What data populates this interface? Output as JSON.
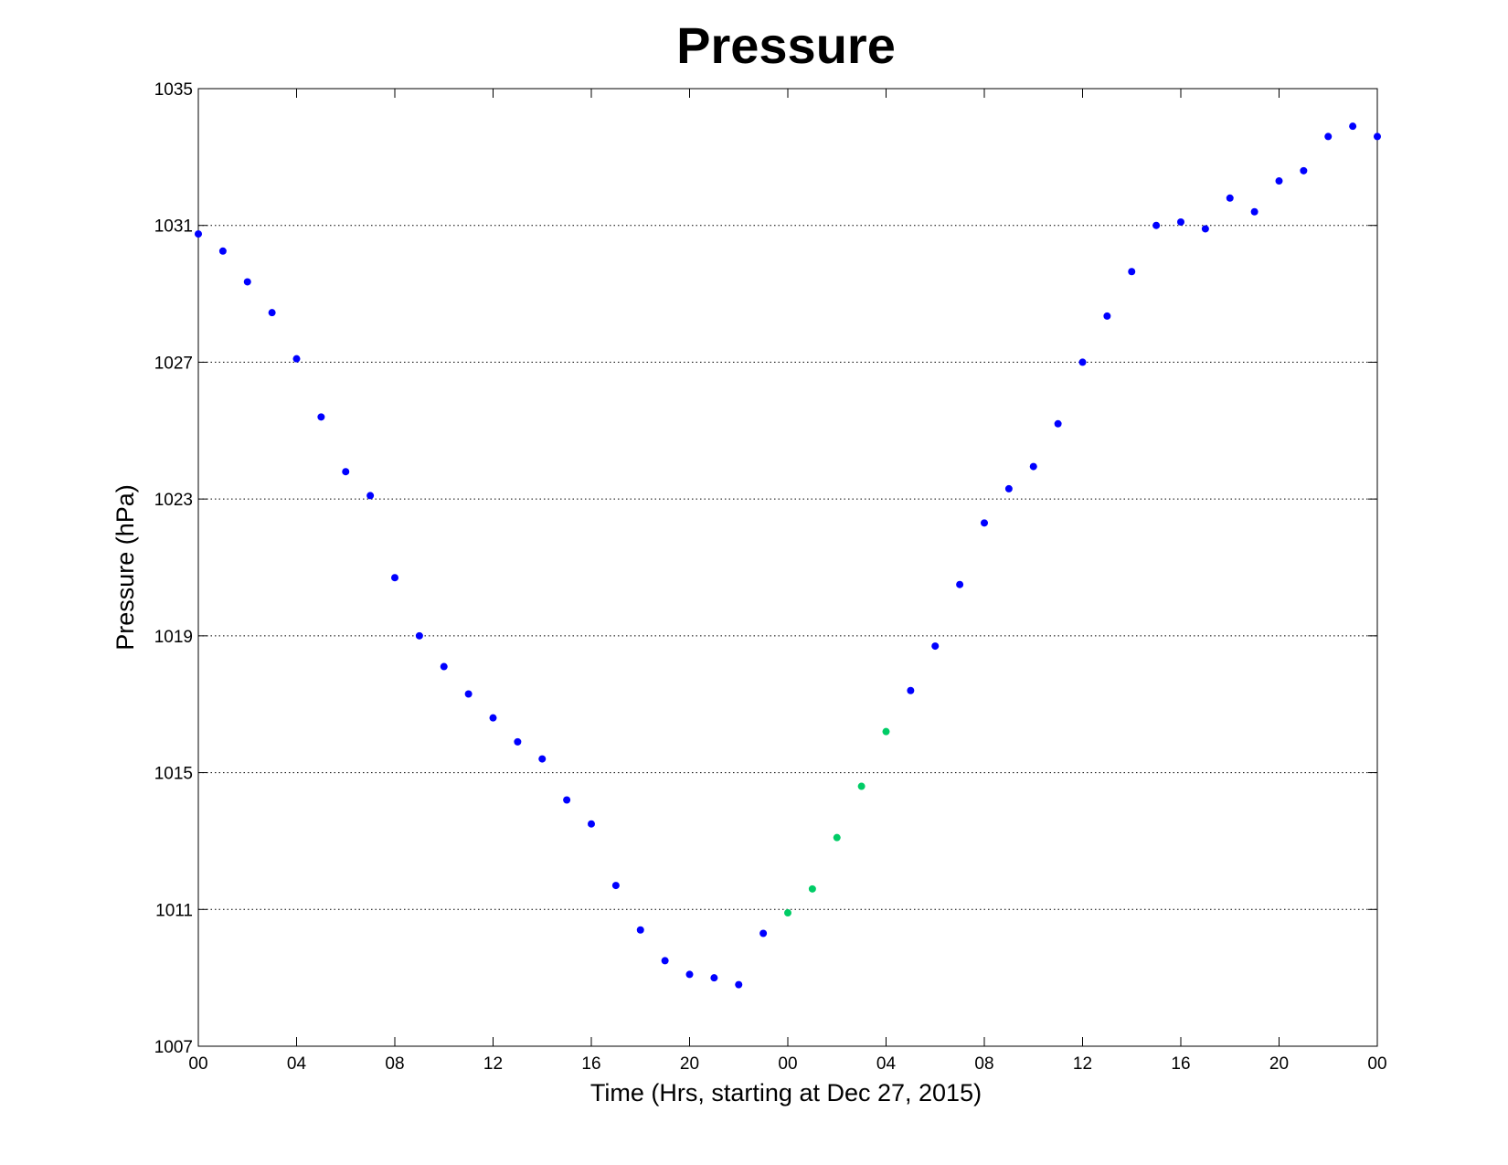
{
  "chart_data": {
    "type": "scatter",
    "title": "Pressure",
    "xlabel": "Time (Hrs, starting at Dec 27, 2015)",
    "ylabel": "Pressure (hPa)",
    "xlim": [
      0,
      48
    ],
    "ylim": [
      1007,
      1035
    ],
    "x_tick_labels": [
      "00",
      "04",
      "08",
      "12",
      "16",
      "20",
      "00",
      "04",
      "08",
      "12",
      "16",
      "20",
      "00"
    ],
    "y_tick_labels": [
      "1007",
      "1011",
      "1015",
      "1019",
      "1023",
      "1027",
      "1031",
      "1035"
    ],
    "grid": "horizontal dotted",
    "series": [
      {
        "color": "#0000ff",
        "points": [
          [
            0,
            1030.75
          ],
          [
            1,
            1030.25
          ],
          [
            2,
            1029.35
          ],
          [
            3,
            1028.45
          ],
          [
            4,
            1027.1
          ],
          [
            5,
            1025.4
          ],
          [
            6,
            1023.8
          ],
          [
            7,
            1023.1
          ],
          [
            8,
            1020.7
          ],
          [
            9,
            1019.0
          ],
          [
            10,
            1018.1
          ],
          [
            11,
            1017.3
          ],
          [
            12,
            1016.6
          ],
          [
            13,
            1015.9
          ],
          [
            14,
            1015.4
          ],
          [
            15,
            1014.2
          ],
          [
            16,
            1013.5
          ],
          [
            17,
            1011.7
          ],
          [
            18,
            1010.4
          ],
          [
            19,
            1009.5
          ],
          [
            20,
            1009.1
          ],
          [
            21,
            1009.0
          ],
          [
            22,
            1008.8
          ],
          [
            23,
            1010.3
          ],
          [
            29,
            1017.4
          ],
          [
            30,
            1018.7
          ],
          [
            31,
            1020.5
          ],
          [
            32,
            1022.3
          ],
          [
            33,
            1023.3
          ],
          [
            34,
            1023.95
          ],
          [
            35,
            1025.2
          ],
          [
            36,
            1027.0
          ],
          [
            37,
            1028.35
          ],
          [
            38,
            1029.65
          ],
          [
            39,
            1031.0
          ],
          [
            40,
            1031.1
          ],
          [
            41,
            1030.9
          ],
          [
            42,
            1031.8
          ],
          [
            43,
            1031.4
          ],
          [
            44,
            1032.3
          ],
          [
            45,
            1032.6
          ],
          [
            46,
            1033.6
          ],
          [
            47,
            1033.9
          ],
          [
            48,
            1033.6
          ]
        ]
      },
      {
        "color": "#00cc66",
        "points": [
          [
            24,
            1010.9
          ],
          [
            25,
            1011.6
          ],
          [
            26,
            1013.1
          ],
          [
            27,
            1014.6
          ],
          [
            28,
            1016.2
          ]
        ]
      }
    ]
  }
}
